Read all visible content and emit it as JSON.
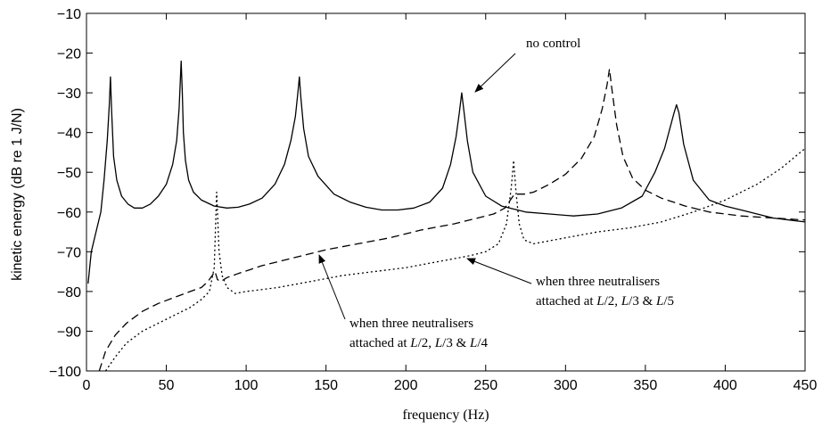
{
  "chart_data": {
    "type": "line",
    "title": "",
    "xlabel": "frequency (Hz)",
    "ylabel": "kinetic energy (dB re 1 J/N)",
    "xlim": [
      0,
      450
    ],
    "ylim": [
      -100,
      -10
    ],
    "xticks": [
      "0",
      "50",
      "100",
      "150",
      "200",
      "250",
      "300",
      "350",
      "400",
      "450"
    ],
    "yticks": [
      "−100",
      "−90",
      "−80",
      "−70",
      "−60",
      "−50",
      "−40",
      "−30",
      "−20",
      "−10"
    ],
    "grid": false,
    "series": [
      {
        "style": "solid",
        "x": [
          1,
          3,
          6,
          9,
          11,
          13,
          14.3,
          15,
          15.7,
          17,
          19,
          22,
          26,
          30,
          35,
          40,
          45,
          50,
          54,
          56.5,
          58,
          59.3,
          60,
          60.7,
          62,
          64,
          67,
          72,
          80,
          88,
          95,
          102,
          110,
          118,
          124,
          128,
          130.8,
          132.4,
          133.3,
          134.2,
          136,
          139,
          145,
          155,
          165,
          175,
          185,
          195,
          205,
          215,
          223,
          228,
          231.5,
          233.5,
          235,
          236.5,
          238.5,
          242,
          250,
          260,
          275,
          290,
          305,
          320,
          335,
          348,
          356,
          362,
          366,
          368,
          369.5,
          371,
          374,
          380,
          390,
          400,
          410,
          420,
          430,
          440,
          450
        ],
        "y": [
          -78,
          -70,
          -65,
          -60,
          -52,
          -42,
          -33,
          -26,
          -34,
          -46,
          -52,
          -56,
          -58,
          -59,
          -59,
          -58,
          -56,
          -53,
          -48,
          -42,
          -34,
          -22,
          -30,
          -40,
          -47,
          -52,
          -55,
          -57,
          -58.5,
          -59,
          -58.8,
          -58,
          -56.5,
          -53,
          -48,
          -42,
          -36,
          -30,
          -26,
          -31,
          -39,
          -46,
          -51,
          -55.5,
          -57.5,
          -58.8,
          -59.5,
          -59.5,
          -59,
          -57.5,
          -54,
          -48,
          -41,
          -35,
          -30,
          -35,
          -42,
          -50,
          -56,
          -58.5,
          -60,
          -60.5,
          -61,
          -60.5,
          -59,
          -56,
          -50,
          -44,
          -38,
          -35,
          -33,
          -35,
          -43,
          -52,
          -57,
          -58.5,
          -59.5,
          -60.5,
          -61.5,
          -62,
          -62.5
        ]
      },
      {
        "style": "dashed",
        "x": [
          8,
          12,
          18,
          25,
          35,
          45,
          55,
          65,
          72,
          76,
          80.5,
          82,
          84,
          88,
          95,
          110,
          130,
          150,
          170,
          190,
          210,
          230,
          245,
          255,
          262,
          268,
          274,
          280,
          290,
          300,
          310,
          318,
          323,
          326,
          327.5,
          329,
          332,
          336,
          342,
          350,
          360,
          375,
          390,
          410,
          430,
          450
        ],
        "y": [
          -100,
          -95,
          -91,
          -88,
          -85,
          -83,
          -81.5,
          -80,
          -79,
          -77.5,
          -75,
          -77,
          -77.5,
          -76.5,
          -75.5,
          -73.5,
          -71.5,
          -69.5,
          -68,
          -66.5,
          -64.5,
          -63,
          -61.5,
          -60.5,
          -59,
          -55.5,
          -55.5,
          -55,
          -53,
          -50.5,
          -46.5,
          -41,
          -34,
          -28,
          -24,
          -29,
          -38,
          -46,
          -51.5,
          -54.5,
          -56.5,
          -58.5,
          -60,
          -61,
          -61.5,
          -62
        ]
      },
      {
        "style": "dotted",
        "x": [
          12,
          18,
          25,
          35,
          45,
          55,
          65,
          72,
          77,
          80,
          81.5,
          83,
          85,
          88,
          93,
          100,
          120,
          140,
          160,
          180,
          200,
          220,
          240,
          250,
          258,
          263,
          266,
          267.5,
          269,
          271,
          274,
          280,
          300,
          320,
          340,
          360,
          380,
          400,
          420,
          435,
          450
        ],
        "y": [
          -100,
          -96.5,
          -93,
          -90,
          -88,
          -86,
          -84,
          -82,
          -80,
          -74,
          -55,
          -70,
          -76,
          -79,
          -80.5,
          -80,
          -79,
          -77.5,
          -76,
          -75,
          -74,
          -72.5,
          -71,
          -70,
          -68,
          -63,
          -54,
          -47,
          -55,
          -63,
          -67,
          -68,
          -66.5,
          -65,
          -64,
          -62.5,
          -60,
          -57,
          -53,
          -49,
          -44
        ]
      }
    ],
    "annotations": {
      "no_control": "no control",
      "label_a_line1": "when three neutralisers",
      "label_a_prefix": "attached at ",
      "label_a_L1": "L",
      "label_a_d1": "/2, ",
      "label_a_L2": "L",
      "label_a_d2": "/3 & ",
      "label_a_L3": "L",
      "label_a_d3": "/5",
      "label_b_line1": "when three neutralisers",
      "label_b_prefix": "attached at ",
      "label_b_L1": "L",
      "label_b_d1": "/2, ",
      "label_b_L2": "L",
      "label_b_d2": "/3 & ",
      "label_b_L3": "L",
      "label_b_d3": "/4"
    }
  }
}
